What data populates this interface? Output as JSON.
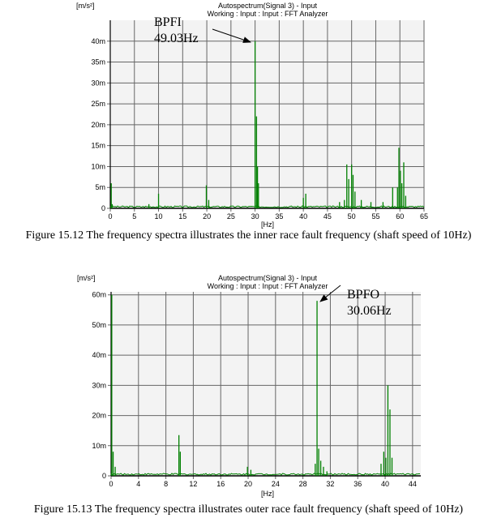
{
  "chart_data": [
    {
      "type": "line",
      "title": "Autospectrum(Signal 3) - Input",
      "subtitle": "Working : Input : Input : FFT Analyzer",
      "ylabel": "[m/s²]",
      "xlabel": "[Hz]",
      "xlim": [
        0,
        65
      ],
      "ylim": [
        0,
        45
      ],
      "xticks": [
        0,
        5,
        10,
        15,
        20,
        25,
        30,
        35,
        40,
        45,
        50,
        55,
        60,
        65
      ],
      "yticks": [
        0,
        5,
        10,
        15,
        20,
        25,
        30,
        35,
        40
      ],
      "ytick_labels": [
        "0",
        "5m",
        "10m",
        "15m",
        "20m",
        "25m",
        "30m",
        "35m",
        "40m"
      ],
      "grid": true,
      "color": "#008000",
      "unit_scale": "m",
      "peaks": [
        [
          0.2,
          6
        ],
        [
          0.4,
          1
        ],
        [
          8,
          1
        ],
        [
          10,
          3.5
        ],
        [
          19.9,
          5.5
        ],
        [
          20.4,
          2
        ],
        [
          30,
          40
        ],
        [
          30.3,
          22
        ],
        [
          30.5,
          10
        ],
        [
          30.7,
          6
        ],
        [
          40,
          2.5
        ],
        [
          40.5,
          3.5
        ],
        [
          47.5,
          1.5
        ],
        [
          48.5,
          2
        ],
        [
          49,
          10.5
        ],
        [
          49.4,
          7
        ],
        [
          50,
          10.5
        ],
        [
          50.3,
          8
        ],
        [
          50.7,
          4
        ],
        [
          52,
          2
        ],
        [
          54,
          1.5
        ],
        [
          56.5,
          1.5
        ],
        [
          58.5,
          5
        ],
        [
          59.5,
          5
        ],
        [
          59.8,
          14.5
        ],
        [
          60.1,
          9
        ],
        [
          60.4,
          6
        ],
        [
          60.8,
          11
        ],
        [
          61.2,
          3
        ]
      ],
      "annotation": {
        "label": "BPFI",
        "value": "49.03Hz"
      },
      "caption": "Figure 15.12 The frequency spectra illustrates the inner race fault frequency (shaft speed of 10Hz)"
    },
    {
      "type": "line",
      "title": "Autospectrum(Signal 3) - Input",
      "subtitle": "Working : Input : Input : FFT Analyzer",
      "ylabel": "[m/s²]",
      "xlabel": "[Hz]",
      "xlim": [
        0,
        45.2
      ],
      "ylim": [
        0,
        61
      ],
      "xticks": [
        0,
        4,
        8,
        12,
        16,
        20,
        24,
        28,
        32,
        36,
        40,
        44
      ],
      "yticks": [
        0,
        10,
        20,
        30,
        40,
        50,
        60
      ],
      "ytick_labels": [
        "0",
        "10m",
        "20m",
        "30m",
        "40m",
        "50m",
        "60m"
      ],
      "grid": true,
      "color": "#008000",
      "unit_scale": "m",
      "peaks": [
        [
          0.1,
          60
        ],
        [
          0.3,
          8
        ],
        [
          0.6,
          3
        ],
        [
          9.9,
          13.5
        ],
        [
          10.1,
          8
        ],
        [
          19.9,
          3
        ],
        [
          20.4,
          2
        ],
        [
          29.8,
          4
        ],
        [
          30.06,
          58
        ],
        [
          30.3,
          9
        ],
        [
          30.6,
          5
        ],
        [
          31,
          3
        ],
        [
          31.5,
          1.5
        ],
        [
          39.4,
          4
        ],
        [
          39.8,
          8
        ],
        [
          40.1,
          6
        ],
        [
          40.4,
          30
        ],
        [
          40.7,
          22
        ],
        [
          41,
          6
        ]
      ],
      "annotation": {
        "label": "BPFO",
        "value": "30.06Hz"
      },
      "caption": "Figure 15.13 The frequency spectra illustrates outer race fault frequency (shaft speed of 10Hz)"
    }
  ]
}
